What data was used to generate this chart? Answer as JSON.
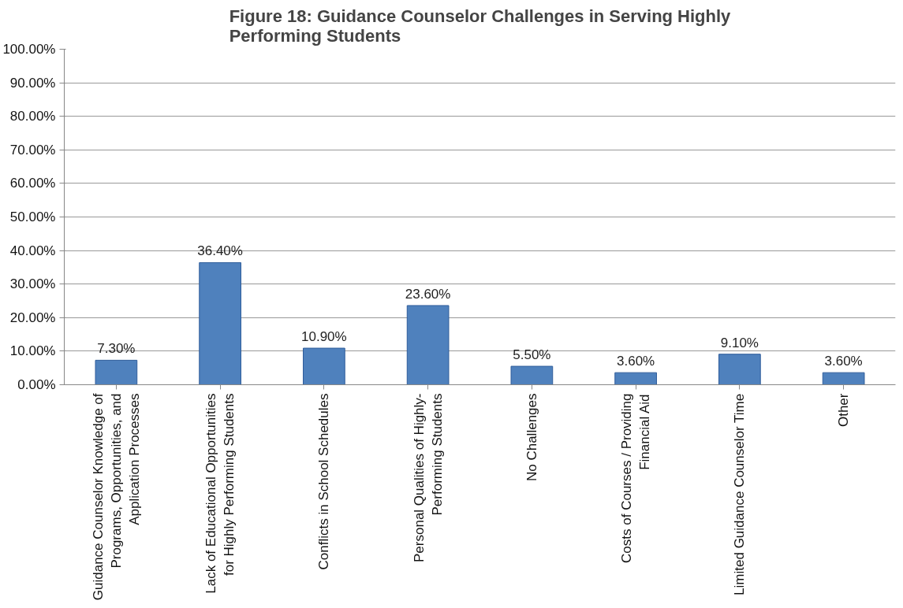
{
  "chart_data": {
    "type": "bar",
    "title": "Figure 18: Guidance Counselor Challenges in Serving Highly Performing Students",
    "categories": [
      "Guidance Counselor Knowledge of Programs, Opportunities, and Application Processes",
      "Lack of Educational Opportunities for Highly Performing Students",
      "Conflicts in School Schedules",
      "Personal Qualities of Highly-Performing Students",
      "No Challenges",
      "Costs of Courses / Providing Financial Aid",
      "Limited Guidance Counselor Time",
      "Other"
    ],
    "values": [
      7.3,
      36.4,
      10.9,
      23.6,
      5.5,
      3.6,
      9.1,
      3.6
    ],
    "value_labels": [
      "7.30%",
      "36.40%",
      "10.90%",
      "23.60%",
      "5.50%",
      "3.60%",
      "9.10%",
      "3.60%"
    ],
    "color": "#4f81bd",
    "ylim": [
      0,
      100
    ],
    "yticks": [
      {
        "value": 0,
        "label": "0.00%"
      },
      {
        "value": 10,
        "label": "10.00%"
      },
      {
        "value": 20,
        "label": "20.00%"
      },
      {
        "value": 30,
        "label": "30.00%"
      },
      {
        "value": 40,
        "label": "40.00%"
      },
      {
        "value": 50,
        "label": "50.00%"
      },
      {
        "value": 60,
        "label": "60.00%"
      },
      {
        "value": 70,
        "label": "70.00%"
      },
      {
        "value": 80,
        "label": "80.00%"
      },
      {
        "value": 90,
        "label": "90.00%"
      },
      {
        "value": 100,
        "label": "100.00%"
      }
    ],
    "grid": "y"
  }
}
